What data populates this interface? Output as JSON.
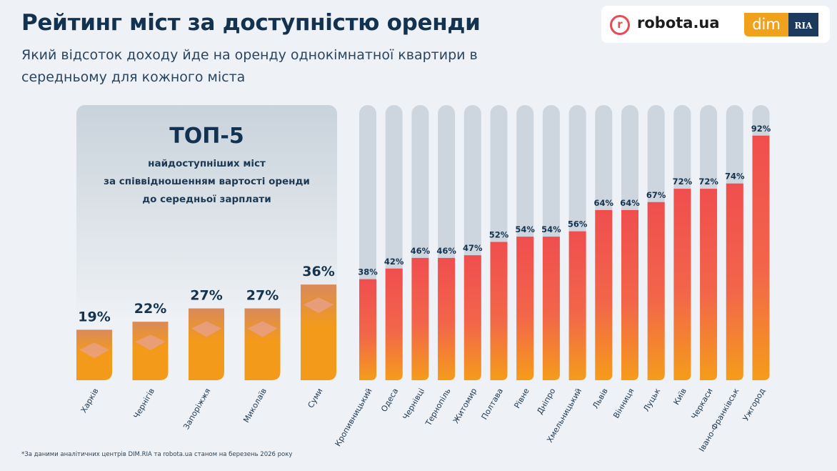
{
  "header": {
    "title": "Рейтинг міст за доступністю оренди",
    "subtitle": "Який відсоток доходу йде на оренду однокімнатної квартири в середньому для кожного міста"
  },
  "logos": {
    "robota": "robota.ua",
    "dim": "dim",
    "ria": "RIA"
  },
  "top5_box": {
    "title": "ТОП-5",
    "description": [
      "найдоступніших міст",
      "за співвідношенням вартості оренди",
      "до середньої зарплати"
    ]
  },
  "footnote": "*За даними аналітичних центрів DIM.RIA та robota.ua станом на березень 2026 року",
  "colors": {
    "bar_top": "#f04e4e",
    "bar_bottom": "#f59c1a",
    "top5_bar": "#f39a1a",
    "track": "#cdd6de",
    "label": "#14334f"
  },
  "chart_data": {
    "type": "bar",
    "unit": "%",
    "categories": [
      "Харків",
      "Чернігів",
      "Запоріжжя",
      "Миколаїв",
      "Суми",
      "Кропивницький",
      "Одеса",
      "Чернівці",
      "Тернопіль",
      "Житомир",
      "Полтава",
      "Рівне",
      "Дніпро",
      "Хмельницький",
      "Львів",
      "Вінниця",
      "Луцьк",
      "Київ",
      "Черкаси",
      "Івано-Франківськ",
      "Ужгород"
    ],
    "values": [
      19,
      22,
      27,
      27,
      36,
      38,
      42,
      46,
      46,
      47,
      52,
      54,
      54,
      56,
      64,
      64,
      67,
      72,
      72,
      74,
      92
    ],
    "highlighted_top5": 5,
    "ylim": [
      0,
      100
    ]
  }
}
